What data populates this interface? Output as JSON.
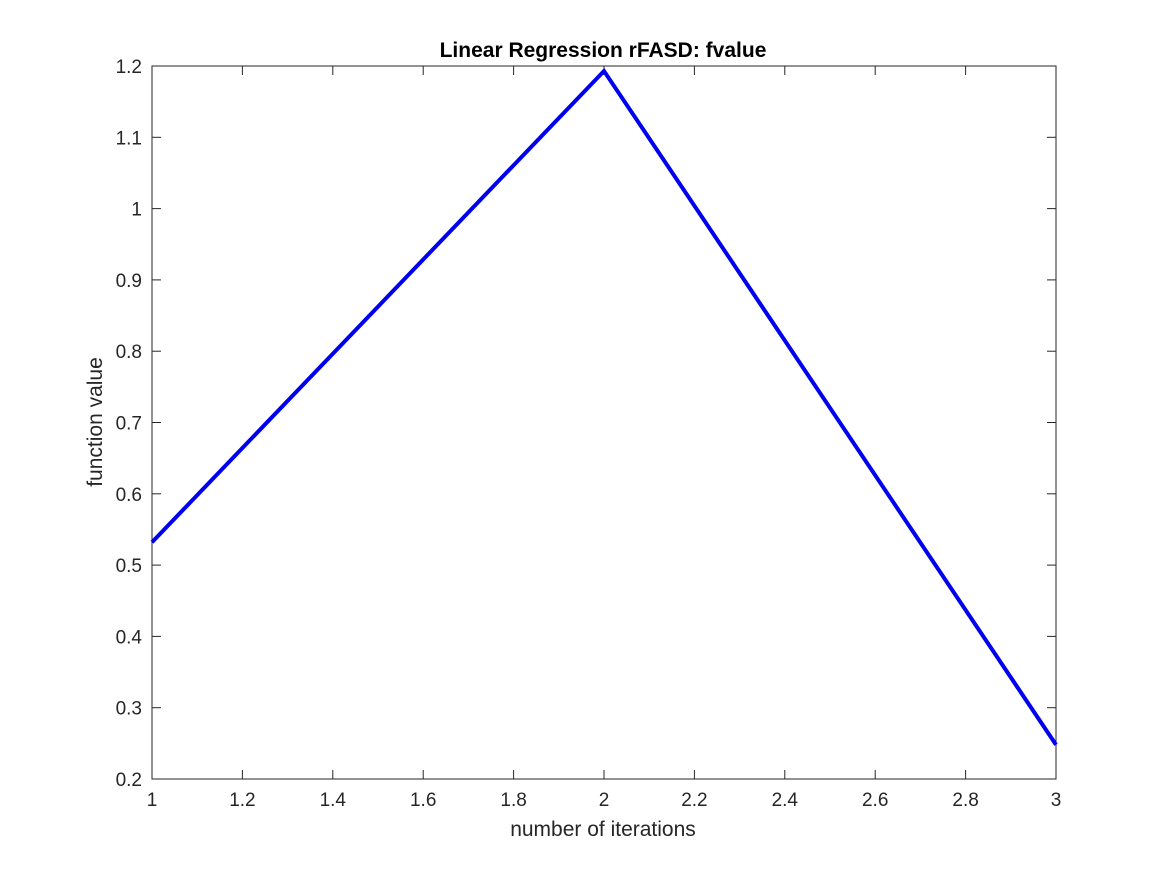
{
  "chart_data": {
    "type": "line",
    "title": "Linear Regression rFASD: fvalue",
    "xlabel": "number of iterations",
    "ylabel": "function value",
    "xlim": [
      1,
      3
    ],
    "ylim": [
      0.2,
      1.2
    ],
    "x_ticks": [
      1,
      1.2,
      1.4,
      1.6,
      1.8,
      2,
      2.2,
      2.4,
      2.6,
      2.8,
      3
    ],
    "x_tick_labels": [
      "1",
      "1.2",
      "1.4",
      "1.6",
      "1.8",
      "2",
      "2.2",
      "2.4",
      "2.6",
      "2.8",
      "3"
    ],
    "y_ticks": [
      0.2,
      0.3,
      0.4,
      0.5,
      0.6,
      0.7,
      0.8,
      0.9,
      1,
      1.1,
      1.2
    ],
    "y_tick_labels": [
      "0.2",
      "0.3",
      "0.4",
      "0.5",
      "0.6",
      "0.7",
      "0.8",
      "0.9",
      "1",
      "1.1",
      "1.2"
    ],
    "grid": false,
    "series": [
      {
        "x": [
          1,
          2,
          3
        ],
        "y": [
          0.532,
          1.193,
          0.248
        ],
        "color": "#0000ee"
      }
    ]
  }
}
